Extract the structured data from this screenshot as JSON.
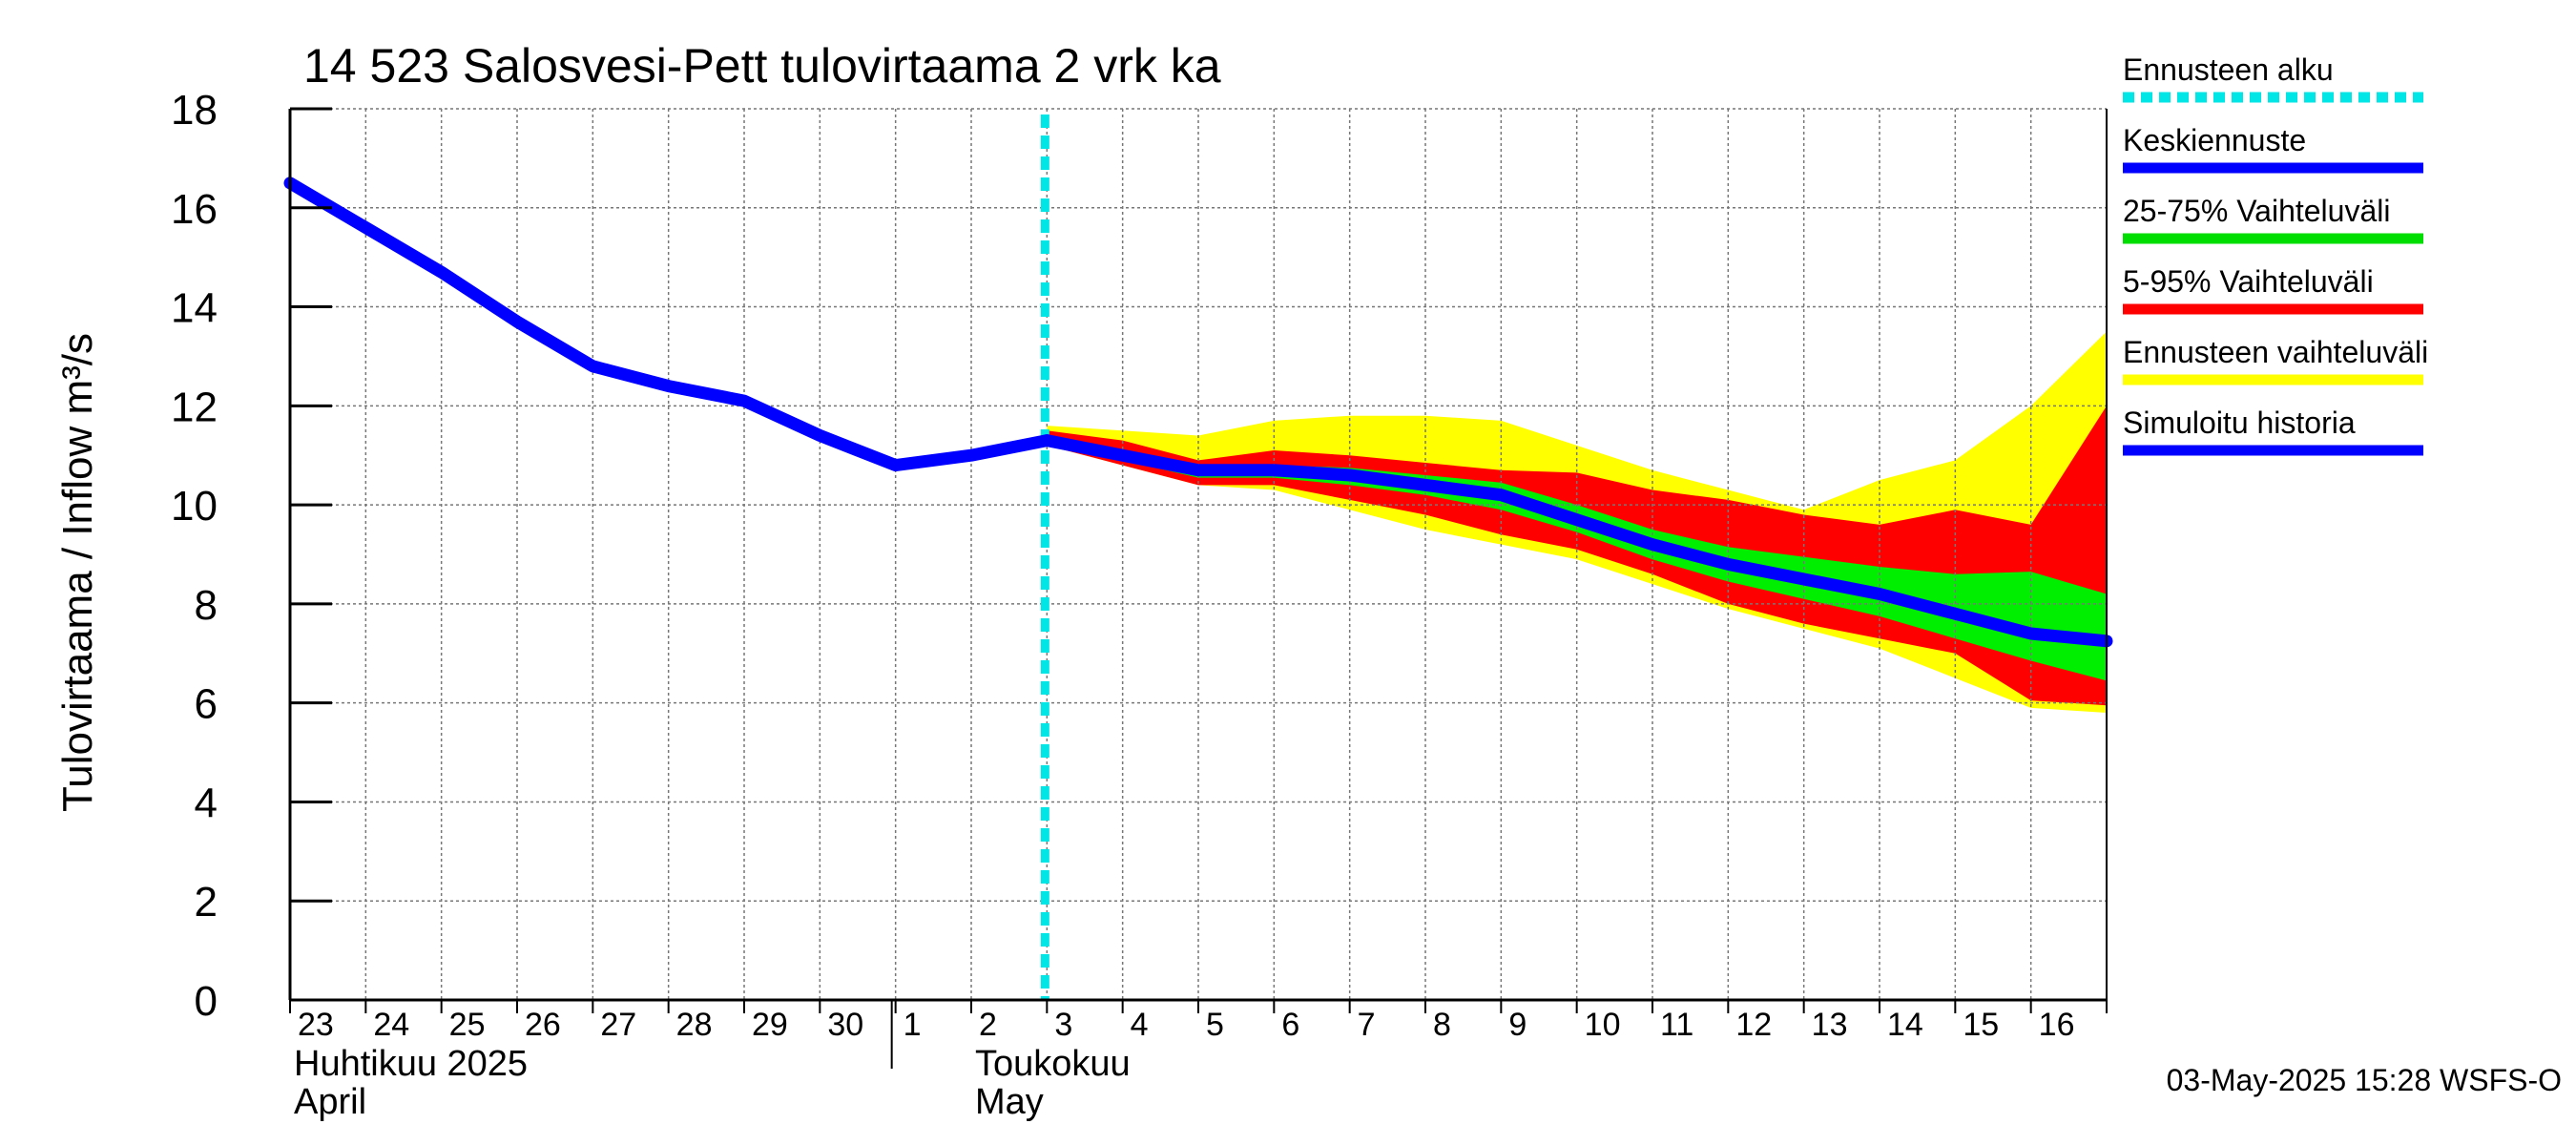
{
  "chart_data": {
    "type": "line",
    "title": "14 523 Salosvesi-Pett tulovirtaama 2 vrk ka",
    "ylabel": "Tulovirtaama / Inflow    m³/s",
    "ylim": [
      0,
      18
    ],
    "yticks": [
      "0",
      "2",
      "4",
      "6",
      "8",
      "10",
      "12",
      "14",
      "16",
      "18"
    ],
    "x_day_labels": [
      "23",
      "24",
      "25",
      "26",
      "27",
      "28",
      "29",
      "30",
      "1",
      "2",
      "3",
      "4",
      "5",
      "6",
      "7",
      "8",
      "9",
      "10",
      "11",
      "12",
      "13",
      "14",
      "15",
      "16"
    ],
    "month_labels": [
      {
        "line1": "Huhtikuu  2025",
        "line2": "April"
      },
      {
        "line1": "Toukokuu",
        "line2": "May"
      }
    ],
    "forecast_start_day_index": 10,
    "grid": true,
    "day_index": [
      0,
      1,
      2,
      3,
      4,
      5,
      6,
      7,
      8,
      9,
      10,
      11,
      12,
      13,
      14,
      15,
      16,
      17,
      18,
      19,
      20,
      21,
      22,
      23,
      24
    ],
    "series": [
      {
        "name": "Simuloitu historia",
        "x": [
          0,
          1,
          2,
          3,
          4,
          5,
          6,
          7,
          8,
          9,
          10
        ],
        "values": [
          16.5,
          15.6,
          14.7,
          13.7,
          12.8,
          12.4,
          12.1,
          11.4,
          10.8,
          11.0,
          11.3
        ]
      },
      {
        "name": "Keskiennuste",
        "x": [
          10,
          11,
          12,
          13,
          14,
          15,
          16,
          17,
          18,
          19,
          20,
          21,
          22,
          23,
          24
        ],
        "values": [
          11.3,
          11.0,
          10.7,
          10.7,
          10.6,
          10.4,
          10.2,
          9.7,
          9.2,
          8.8,
          8.5,
          8.2,
          7.8,
          7.4,
          7.25
        ]
      }
    ],
    "bands": [
      {
        "name": "Ennusteen vaihteluväli",
        "color": "#ffff00",
        "x": [
          10,
          11,
          12,
          13,
          14,
          15,
          16,
          17,
          18,
          19,
          20,
          21,
          22,
          23,
          24
        ],
        "upper": [
          11.6,
          11.5,
          11.4,
          11.7,
          11.8,
          11.8,
          11.7,
          11.2,
          10.7,
          10.3,
          9.9,
          10.5,
          10.9,
          12.0,
          13.5
        ],
        "lower": [
          11.2,
          10.8,
          10.4,
          10.3,
          9.9,
          9.5,
          9.2,
          8.9,
          8.4,
          7.9,
          7.5,
          7.1,
          6.5,
          5.9,
          5.8
        ]
      },
      {
        "name": "5-95% Vaihteluväli",
        "color": "#ff0000",
        "x": [
          10,
          11,
          12,
          13,
          14,
          15,
          16,
          17,
          18,
          19,
          20,
          21,
          22,
          23,
          24
        ],
        "upper": [
          11.5,
          11.3,
          10.9,
          11.1,
          11.0,
          10.85,
          10.7,
          10.65,
          10.3,
          10.1,
          9.8,
          9.6,
          9.9,
          9.6,
          12.0
        ],
        "lower": [
          11.2,
          10.8,
          10.4,
          10.4,
          10.1,
          9.8,
          9.4,
          9.1,
          8.6,
          8.0,
          7.6,
          7.3,
          7.0,
          6.05,
          5.95
        ]
      },
      {
        "name": "25-75% Vaihteluväli",
        "color": "#00ee00",
        "x": [
          10,
          11,
          12,
          13,
          14,
          15,
          16,
          17,
          18,
          19,
          20,
          21,
          22,
          23,
          24
        ],
        "upper": [
          11.4,
          11.1,
          10.75,
          10.8,
          10.75,
          10.6,
          10.45,
          10.0,
          9.5,
          9.15,
          8.95,
          8.75,
          8.6,
          8.65,
          8.2
        ],
        "lower": [
          11.25,
          10.9,
          10.55,
          10.55,
          10.4,
          10.2,
          9.9,
          9.45,
          8.9,
          8.45,
          8.1,
          7.75,
          7.3,
          6.85,
          6.45
        ]
      }
    ],
    "legend_position": "right",
    "legend": [
      {
        "label": "Ennusteen alku",
        "color": "#00e5e5",
        "style": "dotted"
      },
      {
        "label": "Keskiennuste",
        "color": "#0000ff",
        "style": "solid"
      },
      {
        "label": "25-75% Vaihteluväli",
        "color": "#00dd00",
        "style": "solid"
      },
      {
        "label": "5-95% Vaihteluväli",
        "color": "#ff0000",
        "style": "solid"
      },
      {
        "label": "Ennusteen vaihteluväli",
        "color": "#ffff00",
        "style": "solid"
      },
      {
        "label": "Simuloitu historia",
        "color": "#0000ff",
        "style": "solid"
      }
    ],
    "footer": "03-May-2025 15:28 WSFS-O"
  }
}
